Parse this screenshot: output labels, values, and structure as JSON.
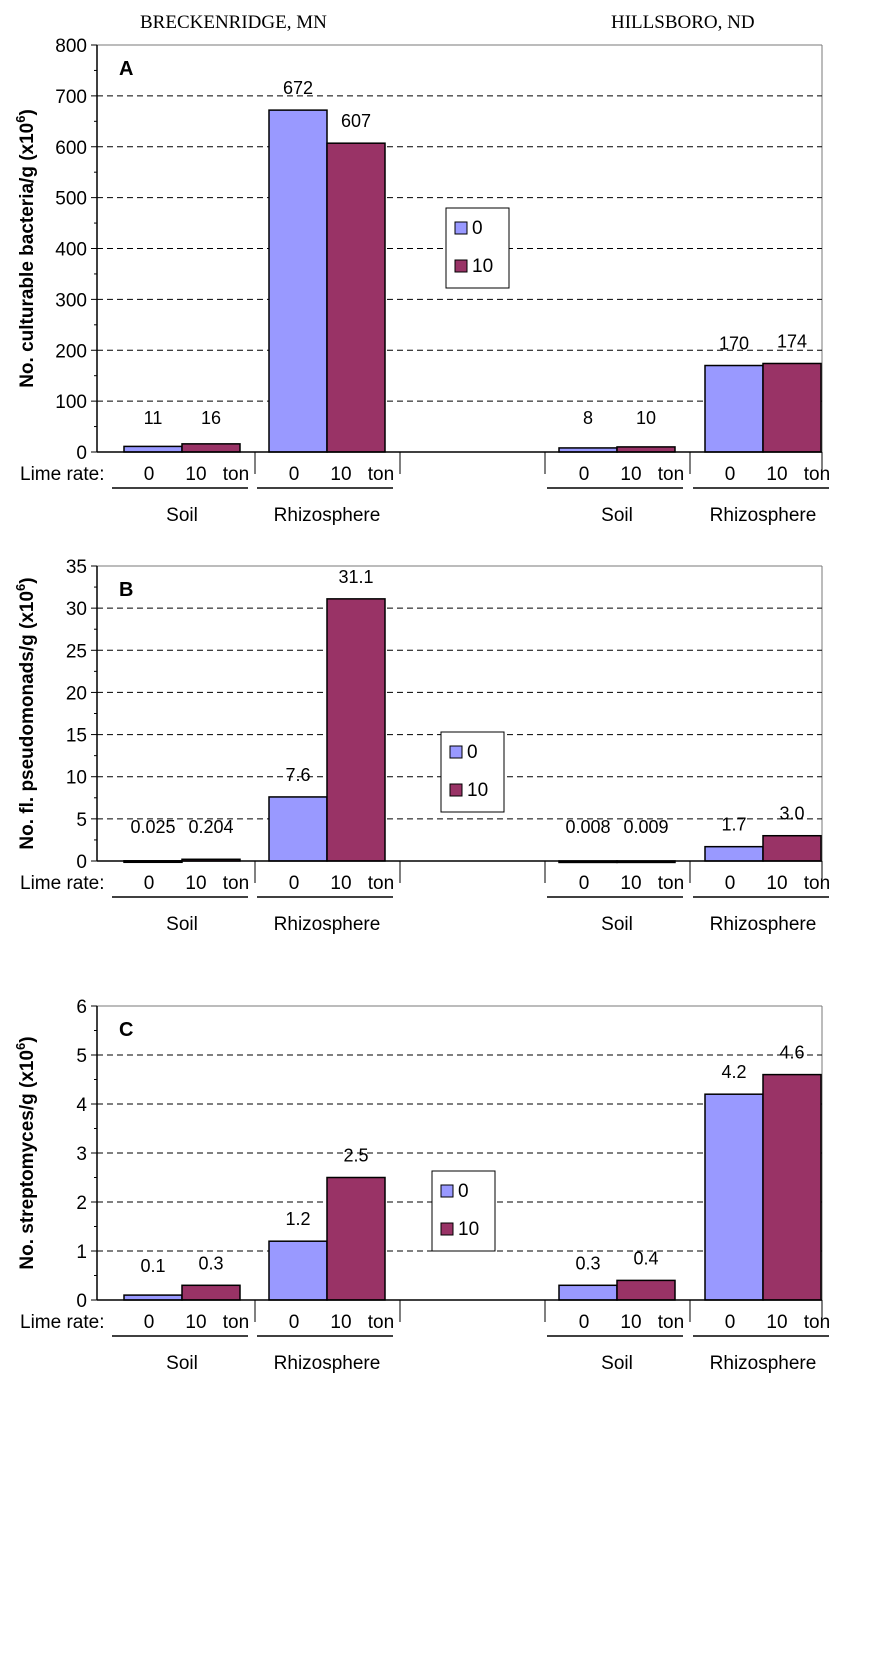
{
  "locations": [
    "BRECKENRIDGE, MN",
    "HILLSBORO, ND"
  ],
  "row_labels": {
    "lime_rate": "Lime rate:",
    "rate_zero": "0",
    "rate_ten": "10",
    "rate_unit": "ton",
    "soil": "Soil",
    "rhizosphere": "Rhizosphere"
  },
  "colors": {
    "series_0": "#9999ff",
    "series_10": "#993366",
    "grid": "#000000"
  },
  "chart_data": [
    {
      "type": "bar",
      "panel": "A",
      "ylabel": "No. culturable bacteria/g (x10 6)",
      "ylabel_main": "No. culturable bacteria/g (x10",
      "ylabel_sup": "6",
      "ylabel_end": ")",
      "ylim": [
        0,
        800
      ],
      "yticks": [
        0,
        100,
        200,
        300,
        400,
        500,
        600,
        700,
        800
      ],
      "grid": true,
      "legend_position": "center",
      "groups": [
        "BRECKENRIDGE, MN Soil",
        "BRECKENRIDGE, MN Rhizosphere",
        "HILLSBORO, ND Soil",
        "HILLSBORO, ND Rhizosphere"
      ],
      "series": [
        {
          "name": "0",
          "values": [
            11,
            672,
            8,
            170
          ],
          "labels": [
            "11",
            "672",
            "8",
            "170"
          ]
        },
        {
          "name": "10",
          "values": [
            16,
            607,
            10,
            174
          ],
          "labels": [
            "16",
            "607",
            "10",
            "174"
          ]
        }
      ]
    },
    {
      "type": "bar",
      "panel": "B",
      "ylabel": "No. fl. pseudomonads/g (x10 6)",
      "ylabel_main": "No. fl. pseudomonads/g (x10",
      "ylabel_sup": "6",
      "ylabel_end": ")",
      "ylim": [
        0,
        35
      ],
      "yticks": [
        0,
        5,
        10,
        15,
        20,
        25,
        30,
        35
      ],
      "grid": true,
      "legend_position": "center",
      "groups": [
        "BRECKENRIDGE, MN Soil",
        "BRECKENRIDGE, MN Rhizosphere",
        "HILLSBORO, ND Soil",
        "HILLSBORO, ND Rhizosphere"
      ],
      "series": [
        {
          "name": "0",
          "values": [
            0.025,
            7.6,
            0.008,
            1.7
          ],
          "labels": [
            "0.025",
            "7.6",
            "0.008",
            "1.7"
          ]
        },
        {
          "name": "10",
          "values": [
            0.204,
            31.1,
            0.009,
            3.0
          ],
          "labels": [
            "0.204",
            "31.1",
            "0.009",
            "3.0"
          ]
        }
      ]
    },
    {
      "type": "bar",
      "panel": "C",
      "ylabel": "No. streptomyces/g (x10 6)",
      "ylabel_main": "No. streptomyces/g (x10",
      "ylabel_sup": "6",
      "ylabel_end": ")",
      "ylim": [
        0,
        6
      ],
      "yticks": [
        0,
        1,
        2,
        3,
        4,
        5,
        6
      ],
      "grid": true,
      "legend_position": "center",
      "groups": [
        "BRECKENRIDGE, MN Soil",
        "BRECKENRIDGE, MN Rhizosphere",
        "HILLSBORO, ND Soil",
        "HILLSBORO, ND Rhizosphere"
      ],
      "series": [
        {
          "name": "0",
          "values": [
            0.1,
            1.2,
            0.3,
            4.2
          ],
          "labels": [
            "0.1",
            "1.2",
            "0.3",
            "4.2"
          ]
        },
        {
          "name": "10",
          "values": [
            0.3,
            2.5,
            0.4,
            4.6
          ],
          "labels": [
            "0.3",
            "2.5",
            "0.4",
            "4.6"
          ]
        }
      ]
    }
  ]
}
